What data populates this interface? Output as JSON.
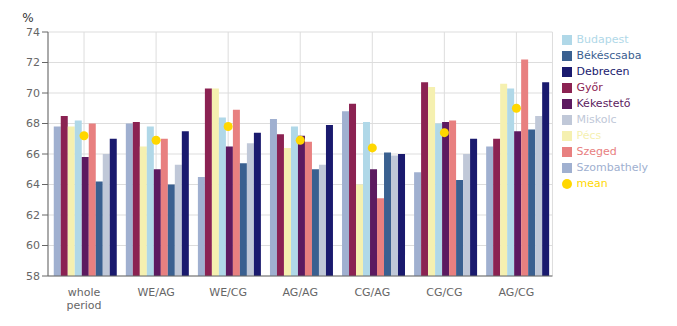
{
  "chart_data": {
    "type": "bar",
    "categories": [
      "whole\nperiod",
      "WE/AG",
      "WE/CG",
      "AG/AG",
      "CG/AG",
      "CG/CG",
      "AG/CG"
    ],
    "series": [
      {
        "name": "Szombathely",
        "color": "#A0B0D0",
        "values": [
          67.8,
          68.0,
          64.5,
          68.3,
          68.8,
          64.8,
          66.5
        ]
      },
      {
        "name": "Győr",
        "color": "#8B2252",
        "values": [
          68.5,
          68.1,
          70.3,
          67.3,
          69.3,
          70.7,
          67.0
        ]
      },
      {
        "name": "Pécs",
        "color": "#F5F0B0",
        "values": [
          67.8,
          66.5,
          70.3,
          66.4,
          64.0,
          70.4,
          70.6
        ]
      },
      {
        "name": "Budapest",
        "color": "#B0D8E8",
        "values": [
          68.2,
          67.8,
          68.4,
          67.8,
          68.1,
          68.0,
          70.3
        ]
      },
      {
        "name": "Kékestető",
        "color": "#5C1A60",
        "values": [
          65.8,
          65.0,
          66.5,
          67.2,
          65.0,
          68.1,
          67.5
        ]
      },
      {
        "name": "Szeged",
        "color": "#E88080",
        "values": [
          68.0,
          67.0,
          68.9,
          66.8,
          63.1,
          68.2,
          72.2
        ]
      },
      {
        "name": "Békéscsaba",
        "color": "#3A6090",
        "values": [
          64.2,
          64.0,
          65.4,
          65.0,
          66.1,
          64.3,
          67.6
        ]
      },
      {
        "name": "Miskolc",
        "color": "#C0C8D8",
        "values": [
          66.0,
          65.3,
          66.7,
          65.3,
          65.9,
          66.0,
          68.5
        ]
      },
      {
        "name": "Debrecen",
        "color": "#1A1A6E",
        "values": [
          67.0,
          67.5,
          67.4,
          67.9,
          66.0,
          67.0,
          70.7
        ]
      },
      {
        "name": "mean",
        "type": "scatter",
        "marker": "o",
        "color": "#FFD700",
        "values": [
          67.2,
          66.9,
          67.8,
          66.9,
          66.4,
          67.4,
          69.0
        ]
      }
    ],
    "ylabel": "%",
    "ylim": [
      58,
      74
    ],
    "yticks": [
      58,
      60,
      62,
      64,
      66,
      68,
      70,
      72,
      74
    ],
    "grid": true,
    "legend": "upper right"
  }
}
